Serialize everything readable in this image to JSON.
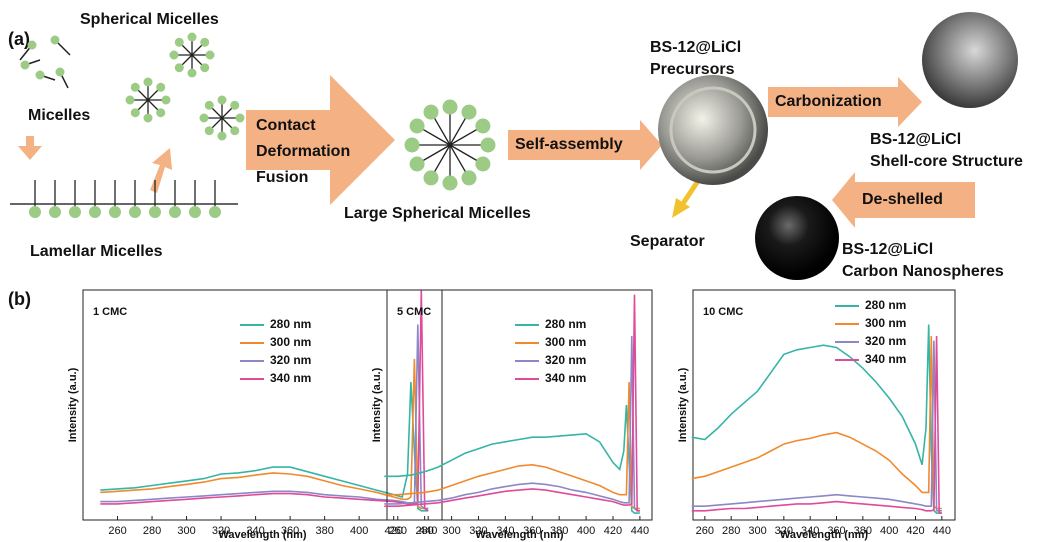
{
  "diagram": {
    "panel_a": "(a)",
    "spherical_micelles": "Spherical Micelles",
    "micelles": "Micelles",
    "lamellar_micelles": "Lamellar Micelles",
    "fusion_steps": [
      "Contact",
      "Deformation",
      "Fusion"
    ],
    "large_spherical_micelles": "Large Spherical Micelles",
    "self_assembly": "Self-assembly",
    "precursors": [
      "BS-12@LiCl",
      "Precursors"
    ],
    "carbonization": "Carbonization",
    "shell_core": [
      "BS-12@LiCl",
      "Shell-core Structure"
    ],
    "de_shelled": "De-shelled",
    "separator": "Separator",
    "carbon": [
      "BS-12@LiCl",
      "Carbon Nanospheres"
    ],
    "panel_b": "(b)"
  },
  "chart_data": [
    {
      "type": "line",
      "title": "1 CMC",
      "xlabel": "Wavelength (nm)",
      "ylabel": "Intensity (a.u.)",
      "x": [
        250,
        260,
        270,
        280,
        290,
        300,
        310,
        320,
        330,
        340,
        350,
        360,
        370,
        380,
        390,
        400,
        410,
        420,
        425,
        428,
        430,
        432,
        434,
        436,
        438,
        440
      ],
      "xlim": [
        240,
        448
      ],
      "xticks": [
        260,
        280,
        300,
        320,
        340,
        360,
        380,
        400,
        420,
        440
      ],
      "ylim": [
        0,
        100
      ],
      "series": [
        {
          "name": "280 nm",
          "color": "#35b5a6",
          "values": [
            13,
            13.5,
            14,
            15,
            16,
            17,
            18,
            20,
            20.5,
            21.5,
            23,
            23,
            21,
            19,
            17,
            15,
            13,
            11,
            10,
            20,
            60,
            30,
            5,
            4,
            4,
            4
          ]
        },
        {
          "name": "300 nm",
          "color": "#f08a2e",
          "values": [
            12,
            12.5,
            13,
            13.5,
            14.5,
            15.5,
            16.5,
            18,
            18.5,
            19.5,
            20.5,
            20,
            19,
            17,
            15,
            13.5,
            12,
            10,
            9,
            9,
            10,
            70,
            6,
            5,
            5,
            5
          ]
        },
        {
          "name": "320 nm",
          "color": "#8a88c6",
          "values": [
            8,
            8,
            8.5,
            9,
            9.5,
            10,
            10.5,
            11,
            11.5,
            12,
            12.5,
            12.5,
            12,
            11,
            10.5,
            10,
            9,
            8.5,
            8,
            7.5,
            7.5,
            7.5,
            85,
            6,
            5,
            5
          ]
        },
        {
          "name": "340 nm",
          "color": "#e04a9a",
          "values": [
            7,
            7,
            7.5,
            8,
            8.5,
            9,
            9.5,
            10,
            10.5,
            11,
            11.5,
            11.5,
            11,
            10,
            9.5,
            9,
            8.5,
            8,
            7.5,
            7,
            7,
            7,
            7.5,
            100,
            5,
            4
          ]
        }
      ]
    },
    {
      "type": "line",
      "title": "5 CMC",
      "xlabel": "Wavelength (nm)",
      "ylabel": "Intensity (a.u.)",
      "x": [
        250,
        260,
        270,
        280,
        290,
        300,
        310,
        320,
        330,
        340,
        350,
        360,
        370,
        380,
        390,
        400,
        410,
        420,
        425,
        428,
        430,
        432,
        434,
        436,
        438,
        440
      ],
      "xlim": [
        252,
        449
      ],
      "xticks": [
        260,
        280,
        300,
        320,
        340,
        360,
        380,
        400,
        420,
        440
      ],
      "ylim": [
        0,
        100
      ],
      "series": [
        {
          "name": "280 nm",
          "color": "#35b5a6",
          "values": [
            19,
            19,
            19.5,
            21,
            23,
            26,
            29,
            31,
            33,
            34,
            35,
            36,
            36,
            36.5,
            37,
            37.5,
            34,
            25,
            22,
            30,
            50,
            25,
            4,
            3,
            3,
            3
          ]
        },
        {
          "name": "300 nm",
          "color": "#f08a2e",
          "values": [
            11,
            11,
            11.5,
            12,
            13,
            15,
            17,
            19,
            20.5,
            22,
            23.5,
            24,
            23,
            21,
            19,
            17,
            15,
            12,
            11,
            11,
            11,
            60,
            6,
            5,
            5,
            5
          ]
        },
        {
          "name": "320 nm",
          "color": "#8a88c6",
          "values": [
            7,
            7,
            7.5,
            8,
            8.5,
            9.5,
            11,
            12,
            13.5,
            14.5,
            15.5,
            16,
            15.5,
            14.5,
            13,
            12,
            10.5,
            9,
            8,
            7.5,
            7.5,
            7.5,
            80,
            5,
            4,
            4
          ]
        },
        {
          "name": "340 nm",
          "color": "#e04a9a",
          "values": [
            6,
            6,
            6.5,
            7,
            7.5,
            8.5,
            9.5,
            10.5,
            11.5,
            12.5,
            13,
            13.5,
            13,
            12,
            11,
            10,
            9,
            8,
            7,
            6.5,
            6.5,
            6.5,
            7,
            98,
            4,
            4
          ]
        }
      ]
    },
    {
      "type": "line",
      "title": "10 CMC",
      "xlabel": "Wavelength (nm)",
      "ylabel": "Intensity (a.u.)",
      "x": [
        250,
        260,
        270,
        280,
        290,
        300,
        310,
        320,
        330,
        340,
        350,
        360,
        370,
        380,
        390,
        400,
        410,
        420,
        425,
        428,
        430,
        432,
        434,
        436,
        438,
        440
      ],
      "xlim": [
        251,
        450
      ],
      "xticks": [
        260,
        280,
        300,
        320,
        340,
        360,
        380,
        400,
        420,
        440
      ],
      "ylim": [
        0,
        100
      ],
      "series": [
        {
          "name": "280 nm",
          "color": "#35b5a6",
          "values": [
            36,
            35,
            40,
            46,
            51,
            56,
            64,
            72,
            74,
            75,
            76,
            75,
            71,
            66,
            60,
            53,
            45,
            33,
            24,
            40,
            85,
            30,
            4,
            3,
            3,
            3
          ]
        },
        {
          "name": "300 nm",
          "color": "#f08a2e",
          "values": [
            18,
            19,
            21,
            23,
            25,
            27,
            30,
            33,
            34.5,
            35.5,
            37,
            38,
            36,
            33,
            30,
            26,
            20,
            15,
            12,
            12,
            12,
            80,
            6,
            5,
            5,
            5
          ]
        },
        {
          "name": "320 nm",
          "color": "#8a88c6",
          "values": [
            6,
            6,
            6.5,
            7,
            7.5,
            8,
            8.5,
            9,
            9.5,
            10,
            10.5,
            11,
            10.5,
            10,
            9.5,
            9,
            8,
            7,
            6.5,
            6,
            6,
            6,
            78,
            4,
            4,
            4
          ]
        },
        {
          "name": "340 nm",
          "color": "#e04a9a",
          "values": [
            4,
            4,
            4.5,
            5,
            5,
            5.5,
            6,
            6.5,
            7,
            7,
            7.5,
            8,
            7.5,
            7,
            6.5,
            6,
            5.5,
            5,
            4.5,
            4,
            4,
            4,
            4.5,
            80,
            3,
            3
          ]
        }
      ]
    }
  ]
}
